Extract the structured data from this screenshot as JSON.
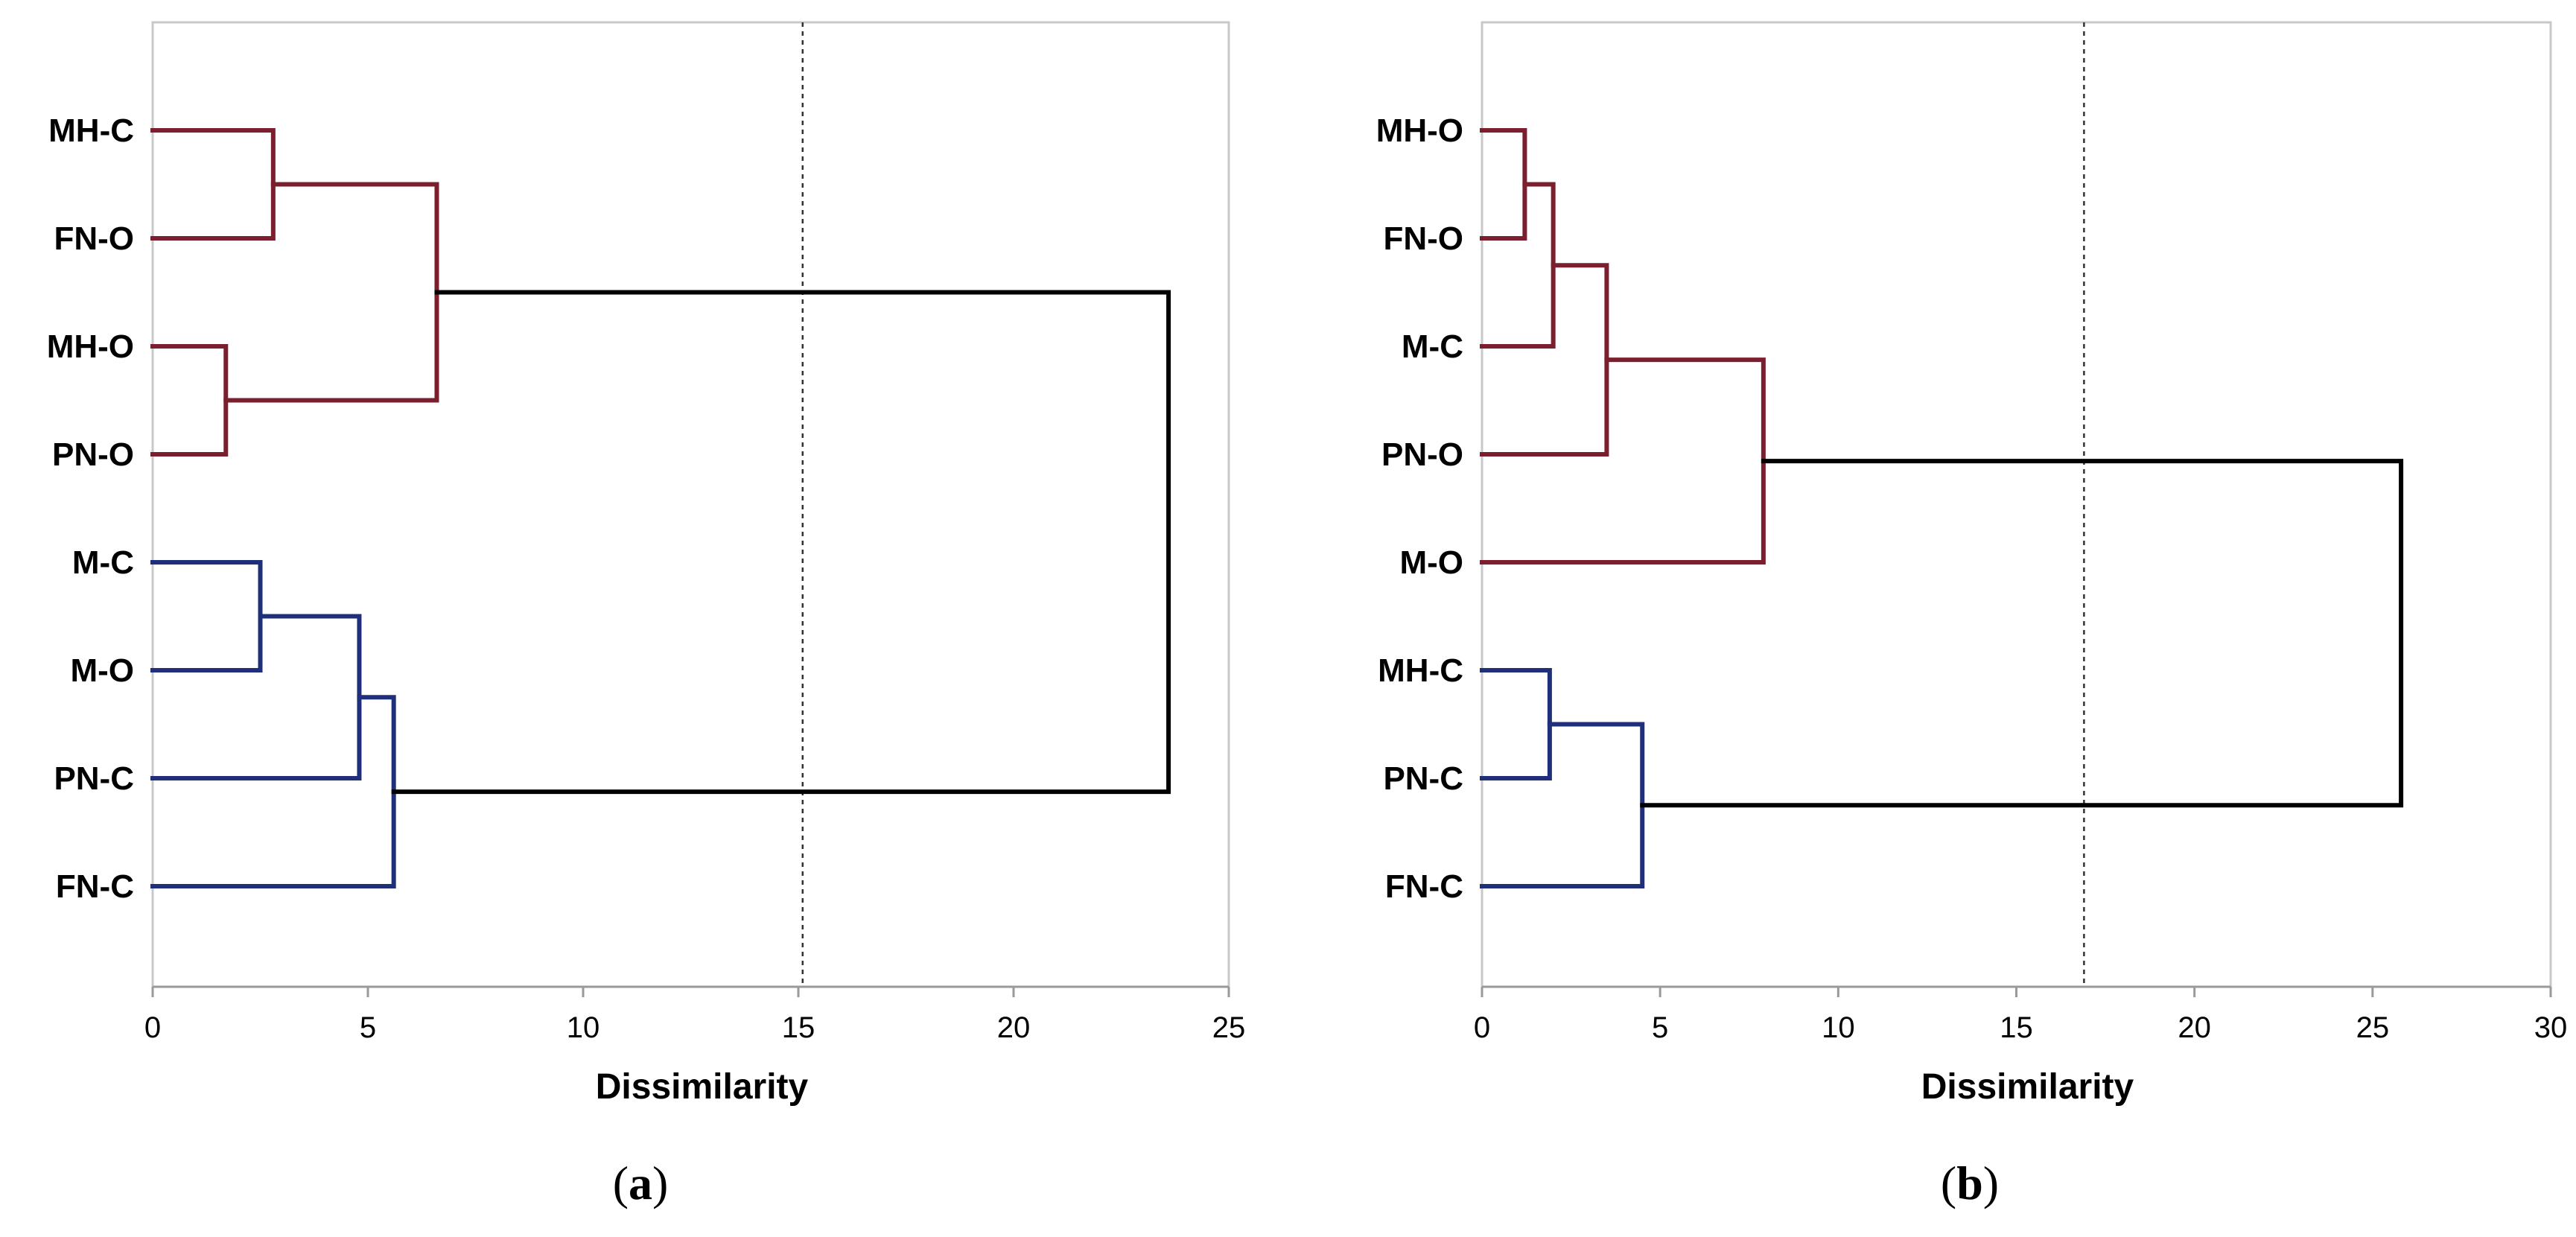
{
  "colors": {
    "cluster1": "#7b1f2e",
    "cluster2": "#1f2f7a",
    "root": "#000000"
  },
  "chart_data": [
    {
      "type": "dendrogram",
      "panel": "a",
      "caption_open": "(",
      "caption_letter": "a",
      "caption_close": ")",
      "xlabel": "Dissimilarity",
      "xlim": [
        0,
        25
      ],
      "xticks": [
        0,
        5,
        10,
        15,
        20,
        25
      ],
      "xtick_labels": [
        "0",
        "5",
        "10",
        "15",
        "20",
        "25"
      ],
      "cut_level": 15.1,
      "leaves": [
        "MH-C",
        "FN-O",
        "MH-O",
        "PN-O",
        "M-C",
        "M-O",
        "PN-C",
        "FN-C"
      ],
      "merges": [
        {
          "id": 8,
          "children": [
            0,
            1
          ],
          "height": 2.8,
          "color": "cluster1"
        },
        {
          "id": 9,
          "children": [
            2,
            3
          ],
          "height": 1.7,
          "color": "cluster1"
        },
        {
          "id": 10,
          "children": [
            8,
            9
          ],
          "height": 6.6,
          "color": "cluster1"
        },
        {
          "id": 11,
          "children": [
            4,
            5
          ],
          "height": 2.5,
          "color": "cluster2"
        },
        {
          "id": 12,
          "children": [
            11,
            6
          ],
          "height": 4.8,
          "color": "cluster2"
        },
        {
          "id": 13,
          "children": [
            12,
            7
          ],
          "height": 5.6,
          "color": "cluster2"
        },
        {
          "id": 14,
          "children": [
            10,
            13
          ],
          "height": 23.6,
          "color": "root"
        }
      ]
    },
    {
      "type": "dendrogram",
      "panel": "b",
      "caption_open": "(",
      "caption_letter": "b",
      "caption_close": ")",
      "xlabel": "Dissimilarity",
      "xlim": [
        0,
        30
      ],
      "xticks": [
        0,
        5,
        10,
        15,
        20,
        25,
        30
      ],
      "xtick_labels": [
        "0",
        "5",
        "10",
        "15",
        "20",
        "25",
        "30"
      ],
      "cut_level": 16.9,
      "leaves": [
        "MH-O",
        "FN-O",
        "M-C",
        "PN-O",
        "M-O",
        "MH-C",
        "PN-C",
        "FN-C"
      ],
      "merges": [
        {
          "id": 8,
          "children": [
            0,
            1
          ],
          "height": 1.2,
          "color": "cluster1"
        },
        {
          "id": 9,
          "children": [
            8,
            2
          ],
          "height": 2.0,
          "color": "cluster1"
        },
        {
          "id": 10,
          "children": [
            9,
            3
          ],
          "height": 3.5,
          "color": "cluster1"
        },
        {
          "id": 11,
          "children": [
            10,
            4
          ],
          "height": 7.9,
          "color": "cluster1"
        },
        {
          "id": 12,
          "children": [
            5,
            6
          ],
          "height": 1.9,
          "color": "cluster2"
        },
        {
          "id": 13,
          "children": [
            12,
            7
          ],
          "height": 4.5,
          "color": "cluster2"
        },
        {
          "id": 14,
          "children": [
            11,
            13
          ],
          "height": 25.8,
          "color": "root"
        }
      ]
    }
  ]
}
